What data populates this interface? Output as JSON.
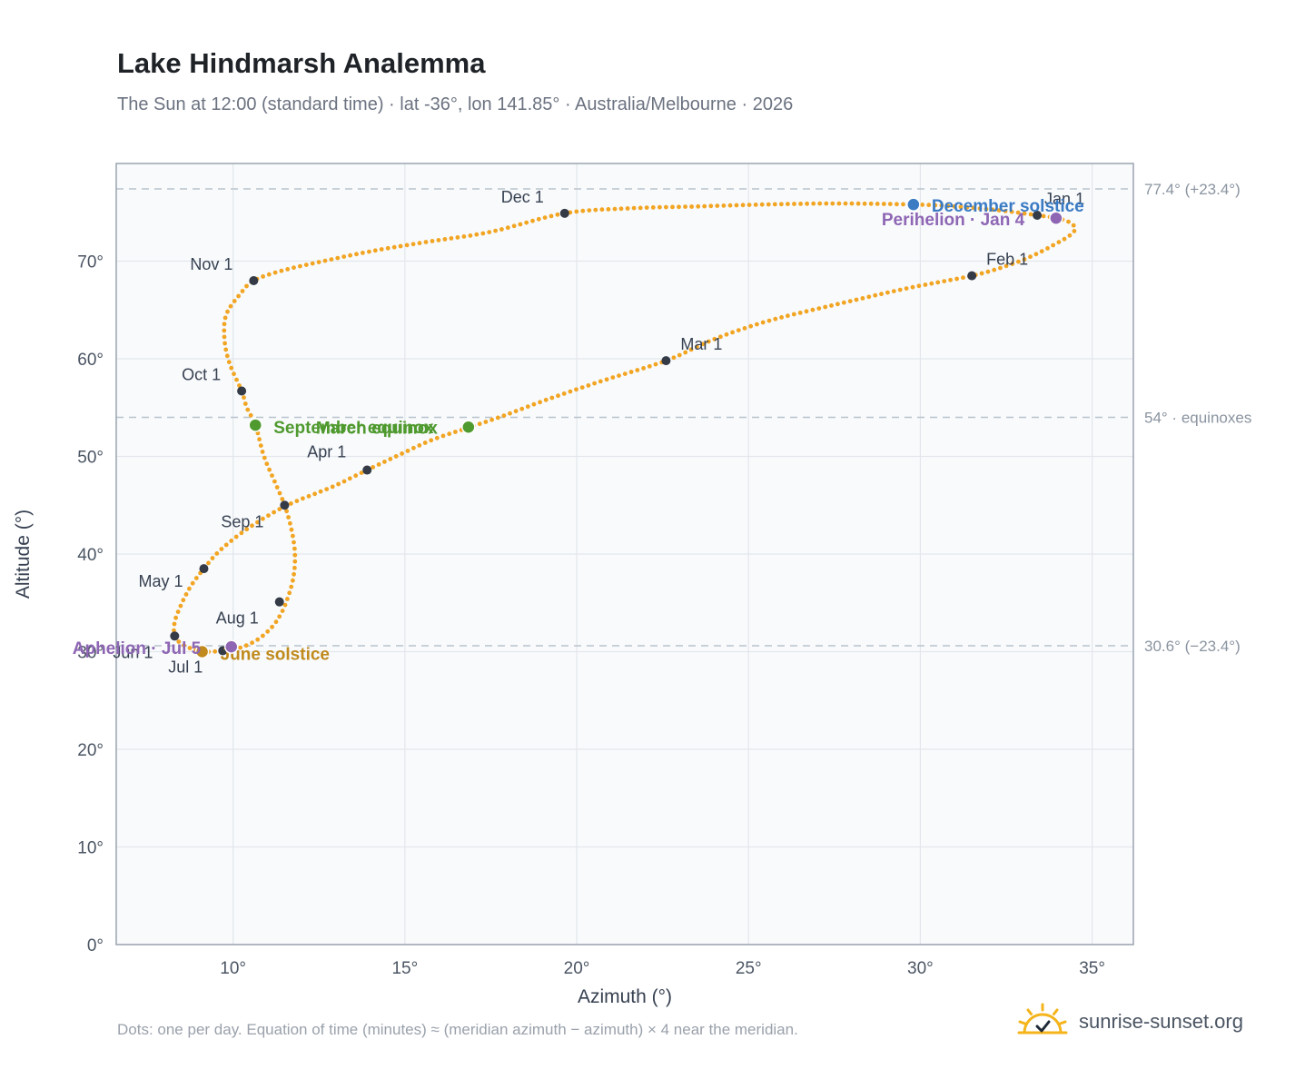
{
  "header": {
    "title": "Lake Hindmarsh Analemma",
    "subtitle": "The Sun at 12:00 (standard time) · lat -36°, lon 141.85° · Australia/Melbourne · 2026"
  },
  "footer": {
    "note": "Dots: one per day. Equation of time (minutes) ≈ (meridian azimuth − azimuth) × 4 near the meridian.",
    "brand": "sunrise-sunset.org",
    "brand_icon": "sun-logo-icon"
  },
  "colors": {
    "curve": "#f2a522",
    "month_marker": "#343a46",
    "december_solstice": "#3b7bc4",
    "june_solstice": "#c08a1c",
    "equinox": "#4f9a2f",
    "apsis": "#8e66b4",
    "plot_background": "#f8fafc",
    "grid": "#e3e7ec",
    "reference_line": "#b9c3cc"
  },
  "chart_data": {
    "type": "scatter",
    "title": "Lake Hindmarsh Analemma",
    "xlabel": "Azimuth (°)",
    "ylabel": "Altitude (°)",
    "xlim": [
      6.6,
      36.2
    ],
    "ylim": [
      0,
      80
    ],
    "grid": true,
    "x_ticks": [
      10,
      15,
      20,
      25,
      30,
      35
    ],
    "x_tick_labels": [
      "10°",
      "15°",
      "20°",
      "25°",
      "30°",
      "35°"
    ],
    "y_ticks": [
      0,
      10,
      20,
      30,
      40,
      50,
      60,
      70
    ],
    "y_tick_labels": [
      "0°",
      "10°",
      "20°",
      "30°",
      "40°",
      "50°",
      "60°",
      "70°"
    ],
    "reference_lines": [
      {
        "y": 77.4,
        "label": "77.4° (+23.4°)"
      },
      {
        "y": 54,
        "label": "54° · equinoxes"
      },
      {
        "y": 30.6,
        "label": "30.6° (−23.4°)"
      }
    ],
    "path": [
      [
        33.4,
        74.7
      ],
      [
        33.8,
        74.5
      ],
      [
        34.2,
        74.2
      ],
      [
        34.45,
        73.7
      ],
      [
        34.5,
        73.2
      ],
      [
        34.3,
        72.5
      ],
      [
        33.9,
        71.7
      ],
      [
        33.3,
        70.6
      ],
      [
        32.5,
        69.5
      ],
      [
        31.5,
        68.5
      ],
      [
        29.6,
        67.2
      ],
      [
        27.6,
        65.6
      ],
      [
        25.6,
        63.9
      ],
      [
        24.0,
        62.0
      ],
      [
        22.6,
        59.8
      ],
      [
        20.8,
        57.8
      ],
      [
        19.2,
        55.9
      ],
      [
        17.9,
        54.2
      ],
      [
        16.9,
        53.0
      ],
      [
        15.8,
        51.7
      ],
      [
        14.8,
        50.1
      ],
      [
        13.9,
        48.6
      ],
      [
        12.9,
        46.9
      ],
      [
        11.9,
        45.5
      ],
      [
        11.2,
        44.3
      ],
      [
        10.3,
        42.3
      ],
      [
        9.6,
        40.3
      ],
      [
        9.15,
        38.5
      ],
      [
        8.75,
        36.6
      ],
      [
        8.45,
        34.5
      ],
      [
        8.3,
        33.0
      ],
      [
        8.3,
        31.6
      ],
      [
        8.5,
        30.8
      ],
      [
        8.8,
        30.3
      ],
      [
        9.2,
        30.0
      ],
      [
        9.7,
        30.1
      ],
      [
        10.2,
        30.4
      ],
      [
        10.7,
        31.2
      ],
      [
        11.1,
        32.4
      ],
      [
        11.35,
        33.6
      ],
      [
        11.55,
        35.1
      ],
      [
        11.75,
        37.5
      ],
      [
        11.8,
        40.0
      ],
      [
        11.7,
        42.5
      ],
      [
        11.5,
        45.0
      ],
      [
        11.2,
        47.5
      ],
      [
        10.9,
        50.0
      ],
      [
        10.65,
        53.2
      ],
      [
        10.4,
        55.0
      ],
      [
        10.25,
        56.7
      ],
      [
        9.9,
        59.5
      ],
      [
        9.75,
        62.0
      ],
      [
        9.8,
        64.5
      ],
      [
        10.2,
        66.6
      ],
      [
        10.6,
        68.0
      ],
      [
        11.4,
        69.0
      ],
      [
        12.5,
        69.9
      ],
      [
        14.0,
        71.0
      ],
      [
        15.7,
        72.0
      ],
      [
        17.5,
        73.0
      ],
      [
        19.65,
        74.9
      ],
      [
        21.5,
        75.4
      ],
      [
        23.5,
        75.6
      ],
      [
        25.5,
        75.8
      ],
      [
        27.5,
        75.9
      ],
      [
        29.8,
        75.8
      ],
      [
        31.0,
        75.6
      ],
      [
        32.3,
        75.2
      ],
      [
        33.4,
        74.7
      ]
    ],
    "month_markers": [
      {
        "label": "Jan 1",
        "x": 33.4,
        "y": 74.7
      },
      {
        "label": "Feb 1",
        "x": 31.5,
        "y": 68.5
      },
      {
        "label": "Mar 1",
        "x": 22.6,
        "y": 59.8
      },
      {
        "label": "Apr 1",
        "x": 13.9,
        "y": 48.6
      },
      {
        "label": "May 1",
        "x": 9.15,
        "y": 38.5
      },
      {
        "label": "Jun 1",
        "x": 8.3,
        "y": 31.6
      },
      {
        "label": "Jul 1",
        "x": 9.7,
        "y": 30.1
      },
      {
        "label": "Aug 1",
        "x": 11.35,
        "y": 35.1
      },
      {
        "label": "Sep 1",
        "x": 11.5,
        "y": 45.0
      },
      {
        "label": "Oct 1",
        "x": 10.25,
        "y": 56.7
      },
      {
        "label": "Nov 1",
        "x": 10.6,
        "y": 68.0
      },
      {
        "label": "Dec 1",
        "x": 19.65,
        "y": 74.9
      }
    ],
    "events": [
      {
        "label": "December solstice",
        "x": 29.8,
        "y": 75.8,
        "kind": "december_solstice"
      },
      {
        "label": "Perihelion · Jan 4",
        "x": 33.95,
        "y": 74.4,
        "kind": "apsis"
      },
      {
        "label": "March equinox",
        "x": 16.85,
        "y": 53.0,
        "kind": "equinox"
      },
      {
        "label": "September equinox",
        "x": 10.65,
        "y": 53.2,
        "kind": "equinox"
      },
      {
        "label": "June solstice",
        "x": 9.1,
        "y": 30.0,
        "kind": "june_solstice"
      },
      {
        "label": "Aphelion · Jul 5",
        "x": 9.95,
        "y": 30.5,
        "kind": "apsis"
      }
    ]
  }
}
